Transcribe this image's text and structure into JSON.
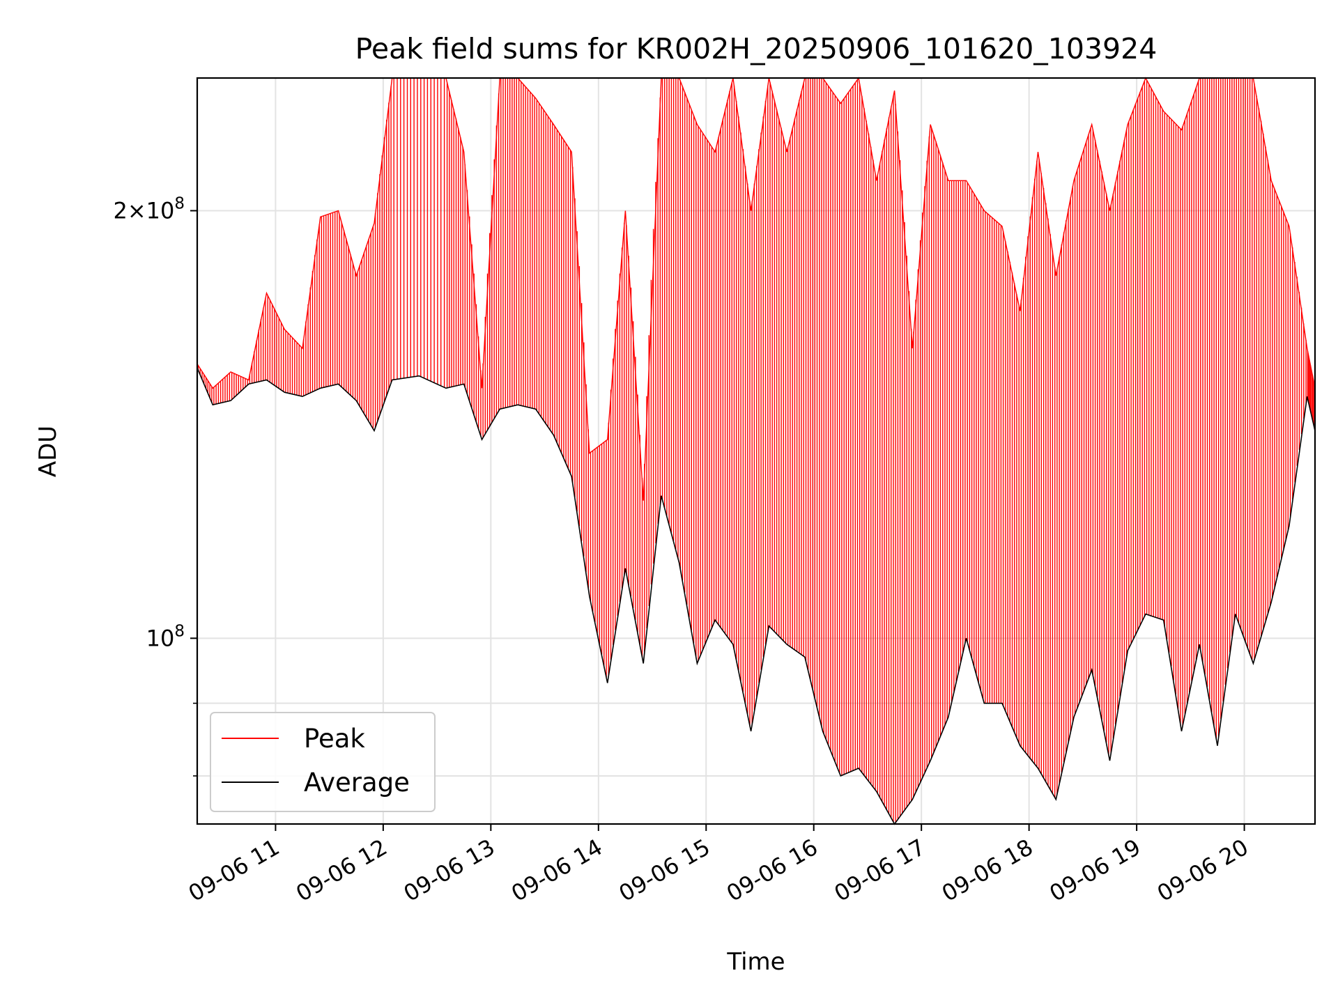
{
  "chart_data": {
    "type": "line",
    "title": "Peak field sums for KR002H_20250906_101620_103924",
    "xlabel": "Time",
    "ylabel": "ADU",
    "xlim": [
      "2025-09-06 10:16:20",
      "2025-09-06 20:39:24"
    ],
    "ylim": [
      74000000,
      248000000
    ],
    "yscale": "log",
    "grid": true,
    "legend_position": "lower-left",
    "x_ticks": [
      "09-06 11",
      "09-06 12",
      "09-06 13",
      "09-06 14",
      "09-06 15",
      "09-06 16",
      "09-06 17",
      "09-06 18",
      "09-06 19",
      "09-06 20"
    ],
    "y_ticks": [
      {
        "value": 100000000,
        "mantissa": "",
        "base": "10",
        "exp": "8"
      },
      {
        "value": 200000000,
        "mantissa": "2×",
        "base": "10",
        "exp": "8"
      }
    ],
    "series": [
      {
        "name": "Average",
        "color": "#000000",
        "x": [
          "2025-09-06 10:16:20",
          "2025-09-06 10:25",
          "2025-09-06 10:35",
          "2025-09-06 10:45",
          "2025-09-06 10:55",
          "2025-09-06 11:05",
          "2025-09-06 11:15",
          "2025-09-06 11:25",
          "2025-09-06 11:35",
          "2025-09-06 11:45",
          "2025-09-06 11:55",
          "2025-09-06 12:05",
          "2025-09-06 12:20",
          "2025-09-06 12:35",
          "2025-09-06 12:45",
          "2025-09-06 12:55",
          "2025-09-06 13:05",
          "2025-09-06 13:15",
          "2025-09-06 13:25",
          "2025-09-06 13:35",
          "2025-09-06 13:45",
          "2025-09-06 13:55",
          "2025-09-06 14:05",
          "2025-09-06 14:15",
          "2025-09-06 14:25",
          "2025-09-06 14:35",
          "2025-09-06 14:45",
          "2025-09-06 14:55",
          "2025-09-06 15:05",
          "2025-09-06 15:15",
          "2025-09-06 15:25",
          "2025-09-06 15:35",
          "2025-09-06 15:45",
          "2025-09-06 15:55",
          "2025-09-06 16:05",
          "2025-09-06 16:15",
          "2025-09-06 16:25",
          "2025-09-06 16:35",
          "2025-09-06 16:45",
          "2025-09-06 16:55",
          "2025-09-06 17:05",
          "2025-09-06 17:15",
          "2025-09-06 17:25",
          "2025-09-06 17:35",
          "2025-09-06 17:45",
          "2025-09-06 17:55",
          "2025-09-06 18:05",
          "2025-09-06 18:15",
          "2025-09-06 18:25",
          "2025-09-06 18:35",
          "2025-09-06 18:45",
          "2025-09-06 18:55",
          "2025-09-06 19:05",
          "2025-09-06 19:15",
          "2025-09-06 19:25",
          "2025-09-06 19:35",
          "2025-09-06 19:45",
          "2025-09-06 19:55",
          "2025-09-06 20:05",
          "2025-09-06 20:15",
          "2025-09-06 20:25",
          "2025-09-06 20:35",
          "2025-09-06 20:39:24"
        ],
        "values": [
          155000000,
          146000000,
          147000000,
          151000000,
          152000000,
          149000000,
          148000000,
          150000000,
          151000000,
          147000000,
          140000000,
          152000000,
          153000000,
          150000000,
          151000000,
          138000000,
          145000000,
          146000000,
          145000000,
          139000000,
          130000000,
          107000000,
          93000000,
          112000000,
          96000000,
          126000000,
          113000000,
          96000000,
          103000000,
          99000000,
          86000000,
          102000000,
          99000000,
          97000000,
          86000000,
          80000000,
          81000000,
          78000000,
          74000000,
          77000000,
          82000000,
          88000000,
          100000000,
          90000000,
          90000000,
          84000000,
          81000000,
          77000000,
          88000000,
          95000000,
          82000000,
          98000000,
          104000000,
          103000000,
          86000000,
          99000000,
          84000000,
          104000000,
          96000000,
          106000000,
          120000000,
          148000000,
          140000000
        ]
      },
      {
        "name": "Peak",
        "color": "#ff0000",
        "x": [
          "2025-09-06 10:16:20",
          "2025-09-06 10:25",
          "2025-09-06 10:35",
          "2025-09-06 10:45",
          "2025-09-06 10:55",
          "2025-09-06 11:05",
          "2025-09-06 11:15",
          "2025-09-06 11:25",
          "2025-09-06 11:35",
          "2025-09-06 11:45",
          "2025-09-06 11:55",
          "2025-09-06 12:05",
          "2025-09-06 12:20",
          "2025-09-06 12:35",
          "2025-09-06 12:45",
          "2025-09-06 12:55",
          "2025-09-06 13:05",
          "2025-09-06 13:15",
          "2025-09-06 13:25",
          "2025-09-06 13:35",
          "2025-09-06 13:45",
          "2025-09-06 13:55",
          "2025-09-06 14:05",
          "2025-09-06 14:15",
          "2025-09-06 14:25",
          "2025-09-06 14:35",
          "2025-09-06 14:45",
          "2025-09-06 14:55",
          "2025-09-06 15:05",
          "2025-09-06 15:15",
          "2025-09-06 15:25",
          "2025-09-06 15:35",
          "2025-09-06 15:45",
          "2025-09-06 15:55",
          "2025-09-06 16:05",
          "2025-09-06 16:15",
          "2025-09-06 16:25",
          "2025-09-06 16:35",
          "2025-09-06 16:45",
          "2025-09-06 16:55",
          "2025-09-06 17:05",
          "2025-09-06 17:15",
          "2025-09-06 17:25",
          "2025-09-06 17:35",
          "2025-09-06 17:45",
          "2025-09-06 17:55",
          "2025-09-06 18:05",
          "2025-09-06 18:15",
          "2025-09-06 18:25",
          "2025-09-06 18:35",
          "2025-09-06 18:45",
          "2025-09-06 18:55",
          "2025-09-06 19:05",
          "2025-09-06 19:15",
          "2025-09-06 19:25",
          "2025-09-06 19:35",
          "2025-09-06 19:45",
          "2025-09-06 19:55",
          "2025-09-06 20:05",
          "2025-09-06 20:15",
          "2025-09-06 20:25",
          "2025-09-06 20:35",
          "2025-09-06 20:39:24"
        ],
        "values": [
          156000000,
          150000000,
          154000000,
          152000000,
          175000000,
          165000000,
          160000000,
          198000000,
          200000000,
          180000000,
          196000000,
          248000000,
          248000000,
          248000000,
          220000000,
          150000000,
          248000000,
          248000000,
          240000000,
          230000000,
          220000000,
          135000000,
          138000000,
          200000000,
          125000000,
          248000000,
          248000000,
          230000000,
          220000000,
          248000000,
          200000000,
          248000000,
          220000000,
          248000000,
          248000000,
          238000000,
          248000000,
          210000000,
          243000000,
          160000000,
          230000000,
          210000000,
          210000000,
          200000000,
          195000000,
          170000000,
          220000000,
          180000000,
          210000000,
          230000000,
          200000000,
          230000000,
          248000000,
          235000000,
          228000000,
          248000000,
          248000000,
          248000000,
          248000000,
          210000000,
          195000000,
          160000000,
          150000000
        ]
      }
    ]
  }
}
